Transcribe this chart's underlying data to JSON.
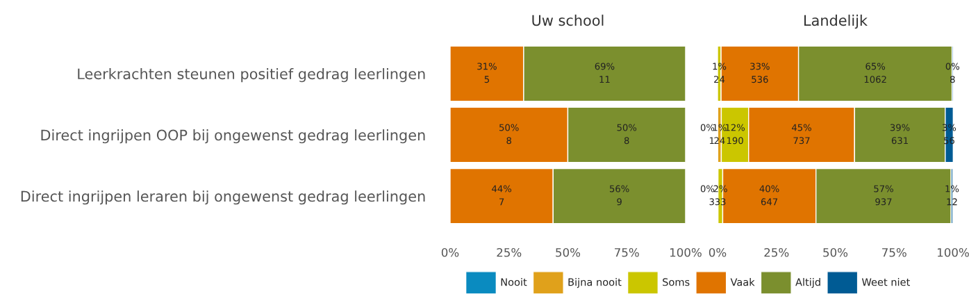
{
  "chart_data": [
    {
      "type": "bar",
      "orientation": "horizontal",
      "stacked": true,
      "title": "Uw school",
      "legend": "bottom",
      "categories": [
        "Leerkrachten steunen positief gedrag leerlingen",
        "Direct ingrijpen OOP bij ongewenst gedrag leerlingen",
        "Direct ingrijpen leraren bij ongewenst gedrag leerlingen"
      ],
      "xlim": [
        0,
        100
      ],
      "xticks": [
        {
          "value": 0,
          "label": "0%"
        },
        {
          "value": 25,
          "label": "25%"
        },
        {
          "value": 50,
          "label": "50%"
        },
        {
          "value": 75,
          "label": "75%"
        },
        {
          "value": 100,
          "label": "100%"
        }
      ],
      "series": [
        {
          "name": "Nooit",
          "color": "#0a8bc0",
          "values": [
            0,
            0,
            0
          ]
        },
        {
          "name": "Bijna nooit",
          "color": "#e0a11b",
          "values": [
            0,
            0,
            0
          ]
        },
        {
          "name": "Soms",
          "color": "#cbc600",
          "values": [
            0,
            0,
            0
          ]
        },
        {
          "name": "Vaak",
          "color": "#e07400",
          "values": [
            31.25,
            50,
            43.75
          ],
          "value_labels": [
            "31%\n5",
            "50%\n8",
            "44%\n7"
          ]
        },
        {
          "name": "Altijd",
          "color": "#7b8f2e",
          "values": [
            68.75,
            50,
            56.25
          ],
          "value_labels": [
            "69%\n11",
            "50%\n8",
            "56%\n9"
          ]
        },
        {
          "name": "Weet niet",
          "color": "#005b94",
          "values": [
            0,
            0,
            0
          ]
        }
      ]
    },
    {
      "type": "bar",
      "orientation": "horizontal",
      "stacked": true,
      "title": "Landelijk",
      "tick_labels": "x",
      "categories": [
        null,
        null,
        null
      ],
      "xlim": [
        0,
        100
      ],
      "xticks": [
        {
          "value": 0,
          "label": "0%"
        },
        {
          "value": 25,
          "label": "25%"
        },
        {
          "value": 50,
          "label": "50%"
        },
        {
          "value": 75,
          "label": "75%"
        },
        {
          "value": 100,
          "label": "100%"
        }
      ],
      "series": [
        {
          "color": "#0a8bc0",
          "values": [
            0,
            0.1,
            0
          ],
          "value_labels": [
            null,
            "0%\n1",
            null
          ]
        },
        {
          "color": "#e0a11b",
          "values": [
            0,
            1.5,
            0.2
          ],
          "value_labels": [
            null,
            "1%\n24",
            "0%\n3"
          ]
        },
        {
          "color": "#cbc600",
          "values": [
            1.5,
            11.6,
            2.0
          ],
          "value_labels": [
            "1%\n24",
            "12%\n190",
            "2%\n33"
          ]
        },
        {
          "color": "#e07400",
          "values": [
            32.9,
            45.0,
            39.6
          ],
          "value_labels": [
            "33%\n536",
            "45%\n737",
            "40%\n647"
          ]
        },
        {
          "color": "#7b8f2e",
          "values": [
            65.2,
            38.5,
            57.4
          ],
          "value_labels": [
            "65%\n1062",
            "39%\n631",
            "57%\n937"
          ]
        },
        {
          "color": "#005b94",
          "values": [
            0.5,
            3.4,
            0.7
          ],
          "value_labels": [
            "0%\n8",
            "3%\n56",
            "1%\n12"
          ]
        }
      ]
    }
  ]
}
